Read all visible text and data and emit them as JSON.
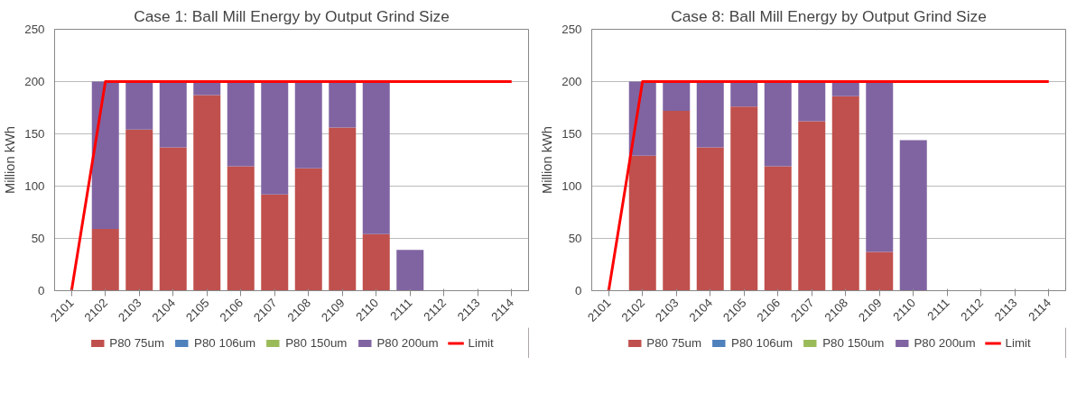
{
  "chart_data": [
    {
      "type": "bar",
      "title": "Case 1: Ball Mill Energy by Output Grind Size",
      "ylabel": "Million kWh",
      "stacked": true,
      "grid": "y",
      "legend": "bottom",
      "ylim": [
        0,
        250
      ],
      "yticks": [
        0,
        50,
        100,
        150,
        200,
        250
      ],
      "categories": [
        "2101",
        "2102",
        "2103",
        "2104",
        "2105",
        "2106",
        "2107",
        "2108",
        "2109",
        "2110",
        "2111",
        "2112",
        "2113",
        "2114"
      ],
      "series": [
        {
          "name": "P80 75um",
          "color": "#c0504d",
          "values": [
            0,
            59,
            154,
            137,
            187,
            119,
            92,
            117,
            156,
            54,
            0,
            0,
            0,
            0
          ]
        },
        {
          "name": "P80 106um",
          "color": "#4f81bd",
          "values": [
            0,
            0,
            0,
            0,
            0,
            0,
            0,
            0,
            0,
            0,
            0,
            0,
            0,
            0
          ]
        },
        {
          "name": "P80 150um",
          "color": "#9bbb59",
          "values": [
            0,
            0,
            0,
            0,
            0,
            0,
            0,
            0,
            0,
            0,
            0,
            0,
            0,
            0
          ]
        },
        {
          "name": "P80 200um",
          "color": "#8064a2",
          "values": [
            0,
            141,
            46,
            63,
            13,
            81,
            108,
            83,
            44,
            146,
            39,
            0,
            0,
            0
          ]
        },
        {
          "name": "Limit",
          "type": "line",
          "color": "#ff0000",
          "values": [
            0,
            200,
            200,
            200,
            200,
            200,
            200,
            200,
            200,
            200,
            200,
            200,
            200,
            200
          ]
        }
      ]
    },
    {
      "type": "bar",
      "title": "Case 8: Ball Mill Energy by Output Grind Size",
      "ylabel": "Million kWh",
      "stacked": true,
      "grid": "y",
      "legend": "bottom",
      "ylim": [
        0,
        250
      ],
      "yticks": [
        0,
        50,
        100,
        150,
        200,
        250
      ],
      "categories": [
        "2101",
        "2102",
        "2103",
        "2104",
        "2105",
        "2106",
        "2107",
        "2108",
        "2109",
        "2110",
        "2111",
        "2112",
        "2113",
        "2114"
      ],
      "series": [
        {
          "name": "P80 75um",
          "color": "#c0504d",
          "values": [
            0,
            129,
            172,
            137,
            176,
            119,
            162,
            186,
            37,
            0,
            0,
            0,
            0,
            0
          ]
        },
        {
          "name": "P80 106um",
          "color": "#4f81bd",
          "values": [
            0,
            0,
            0,
            0,
            0,
            0,
            0,
            0,
            0,
            0,
            0,
            0,
            0,
            0
          ]
        },
        {
          "name": "P80 150um",
          "color": "#9bbb59",
          "values": [
            0,
            0,
            0,
            0,
            0,
            0,
            0,
            0,
            0,
            0,
            0,
            0,
            0,
            0
          ]
        },
        {
          "name": "P80 200um",
          "color": "#8064a2",
          "values": [
            0,
            71,
            28,
            63,
            24,
            81,
            38,
            14,
            163,
            144,
            0,
            0,
            0,
            0
          ]
        },
        {
          "name": "Limit",
          "type": "line",
          "color": "#ff0000",
          "values": [
            0,
            200,
            200,
            200,
            200,
            200,
            200,
            200,
            200,
            200,
            200,
            200,
            200,
            200
          ]
        }
      ]
    }
  ]
}
